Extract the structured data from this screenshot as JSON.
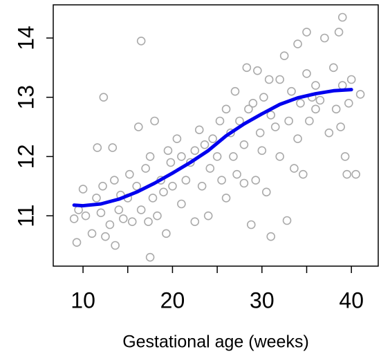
{
  "chart_data": {
    "type": "scatter",
    "x_label": "Gestational age (weeks)",
    "xlim": [
      6.67,
      43.0
    ],
    "ylim": [
      10.15,
      14.56
    ],
    "xticks": [
      10,
      20,
      30,
      40
    ],
    "minor_xticks": [
      15,
      25,
      35
    ],
    "yticks": [
      11,
      12,
      13,
      14
    ],
    "series": [
      {
        "color": "#aaaaaa",
        "x": [
          9,
          9.3,
          9.5,
          10,
          10.3,
          11,
          11.5,
          11.6,
          12,
          12.2,
          12.5,
          13,
          13.3,
          13.5,
          13.6,
          14,
          14.2,
          14.5,
          15,
          15.2,
          15.5,
          16,
          16.2,
          16.5,
          17,
          17.3,
          17.5,
          17.8,
          18,
          18.3,
          18.7,
          19,
          19.3,
          19.5,
          19.8,
          20,
          20.5,
          21,
          21,
          21.5,
          22,
          22.5,
          22.5,
          23,
          23.3,
          23.6,
          24,
          24.2,
          24.5,
          25,
          25.3,
          25.5,
          26,
          26,
          26.5,
          26.8,
          27,
          27.2,
          27.5,
          28,
          28,
          28.3,
          28.5,
          28.8,
          29,
          29.3,
          29.5,
          29.8,
          30,
          30.2,
          30.5,
          30.8,
          31,
          31,
          31.5,
          32,
          32,
          32.5,
          32.8,
          33,
          33.3,
          33.6,
          34,
          34,
          34.3,
          34.6,
          35,
          35,
          35.3,
          35.6,
          36,
          36,
          36.5,
          37,
          37.5,
          38,
          38.3,
          38.6,
          38.8,
          39,
          39,
          39.3,
          39.5,
          39.7,
          40,
          40.5,
          41,
          16.5,
          12.3,
          17.5
        ],
        "values": [
          10.95,
          10.55,
          11.1,
          11.45,
          11.0,
          10.7,
          11.3,
          12.15,
          11.05,
          11.5,
          10.65,
          10.85,
          12.15,
          11.6,
          10.5,
          11.1,
          11.35,
          10.95,
          11.3,
          11.7,
          10.9,
          11.5,
          12.5,
          11.1,
          11.8,
          10.9,
          12.0,
          11.3,
          12.6,
          11.0,
          11.6,
          11.4,
          10.7,
          12.1,
          11.9,
          11.5,
          12.3,
          11.2,
          12.0,
          11.6,
          11.9,
          12.1,
          10.9,
          12.45,
          11.5,
          12.2,
          11.0,
          11.8,
          12.3,
          12.0,
          12.6,
          11.6,
          12.8,
          11.3,
          12.4,
          12.0,
          13.1,
          11.7,
          12.6,
          11.55,
          12.2,
          13.5,
          12.8,
          10.85,
          12.9,
          11.6,
          13.45,
          12.4,
          12.1,
          13.0,
          11.4,
          13.3,
          12.7,
          10.65,
          12.5,
          13.3,
          12.0,
          13.7,
          10.92,
          12.6,
          13.1,
          11.8,
          13.9,
          12.3,
          12.9,
          11.7,
          14.1,
          13.4,
          12.6,
          13.0,
          13.2,
          12.8,
          12.95,
          14.0,
          12.4,
          13.5,
          12.8,
          14.1,
          12.5,
          14.35,
          13.2,
          12.0,
          11.7,
          12.9,
          13.3,
          11.7,
          13.05,
          13.95,
          13.0,
          10.3
        ]
      },
      {
        "type": "line",
        "color": "#0000ee",
        "x": [
          9,
          10,
          12,
          14,
          16,
          18,
          20,
          22,
          24,
          26,
          28,
          30,
          32,
          34,
          36,
          38,
          40
        ],
        "values": [
          11.18,
          11.17,
          11.2,
          11.28,
          11.4,
          11.55,
          11.72,
          11.9,
          12.1,
          12.35,
          12.55,
          12.72,
          12.88,
          12.99,
          13.06,
          13.11,
          13.13
        ]
      }
    ]
  }
}
